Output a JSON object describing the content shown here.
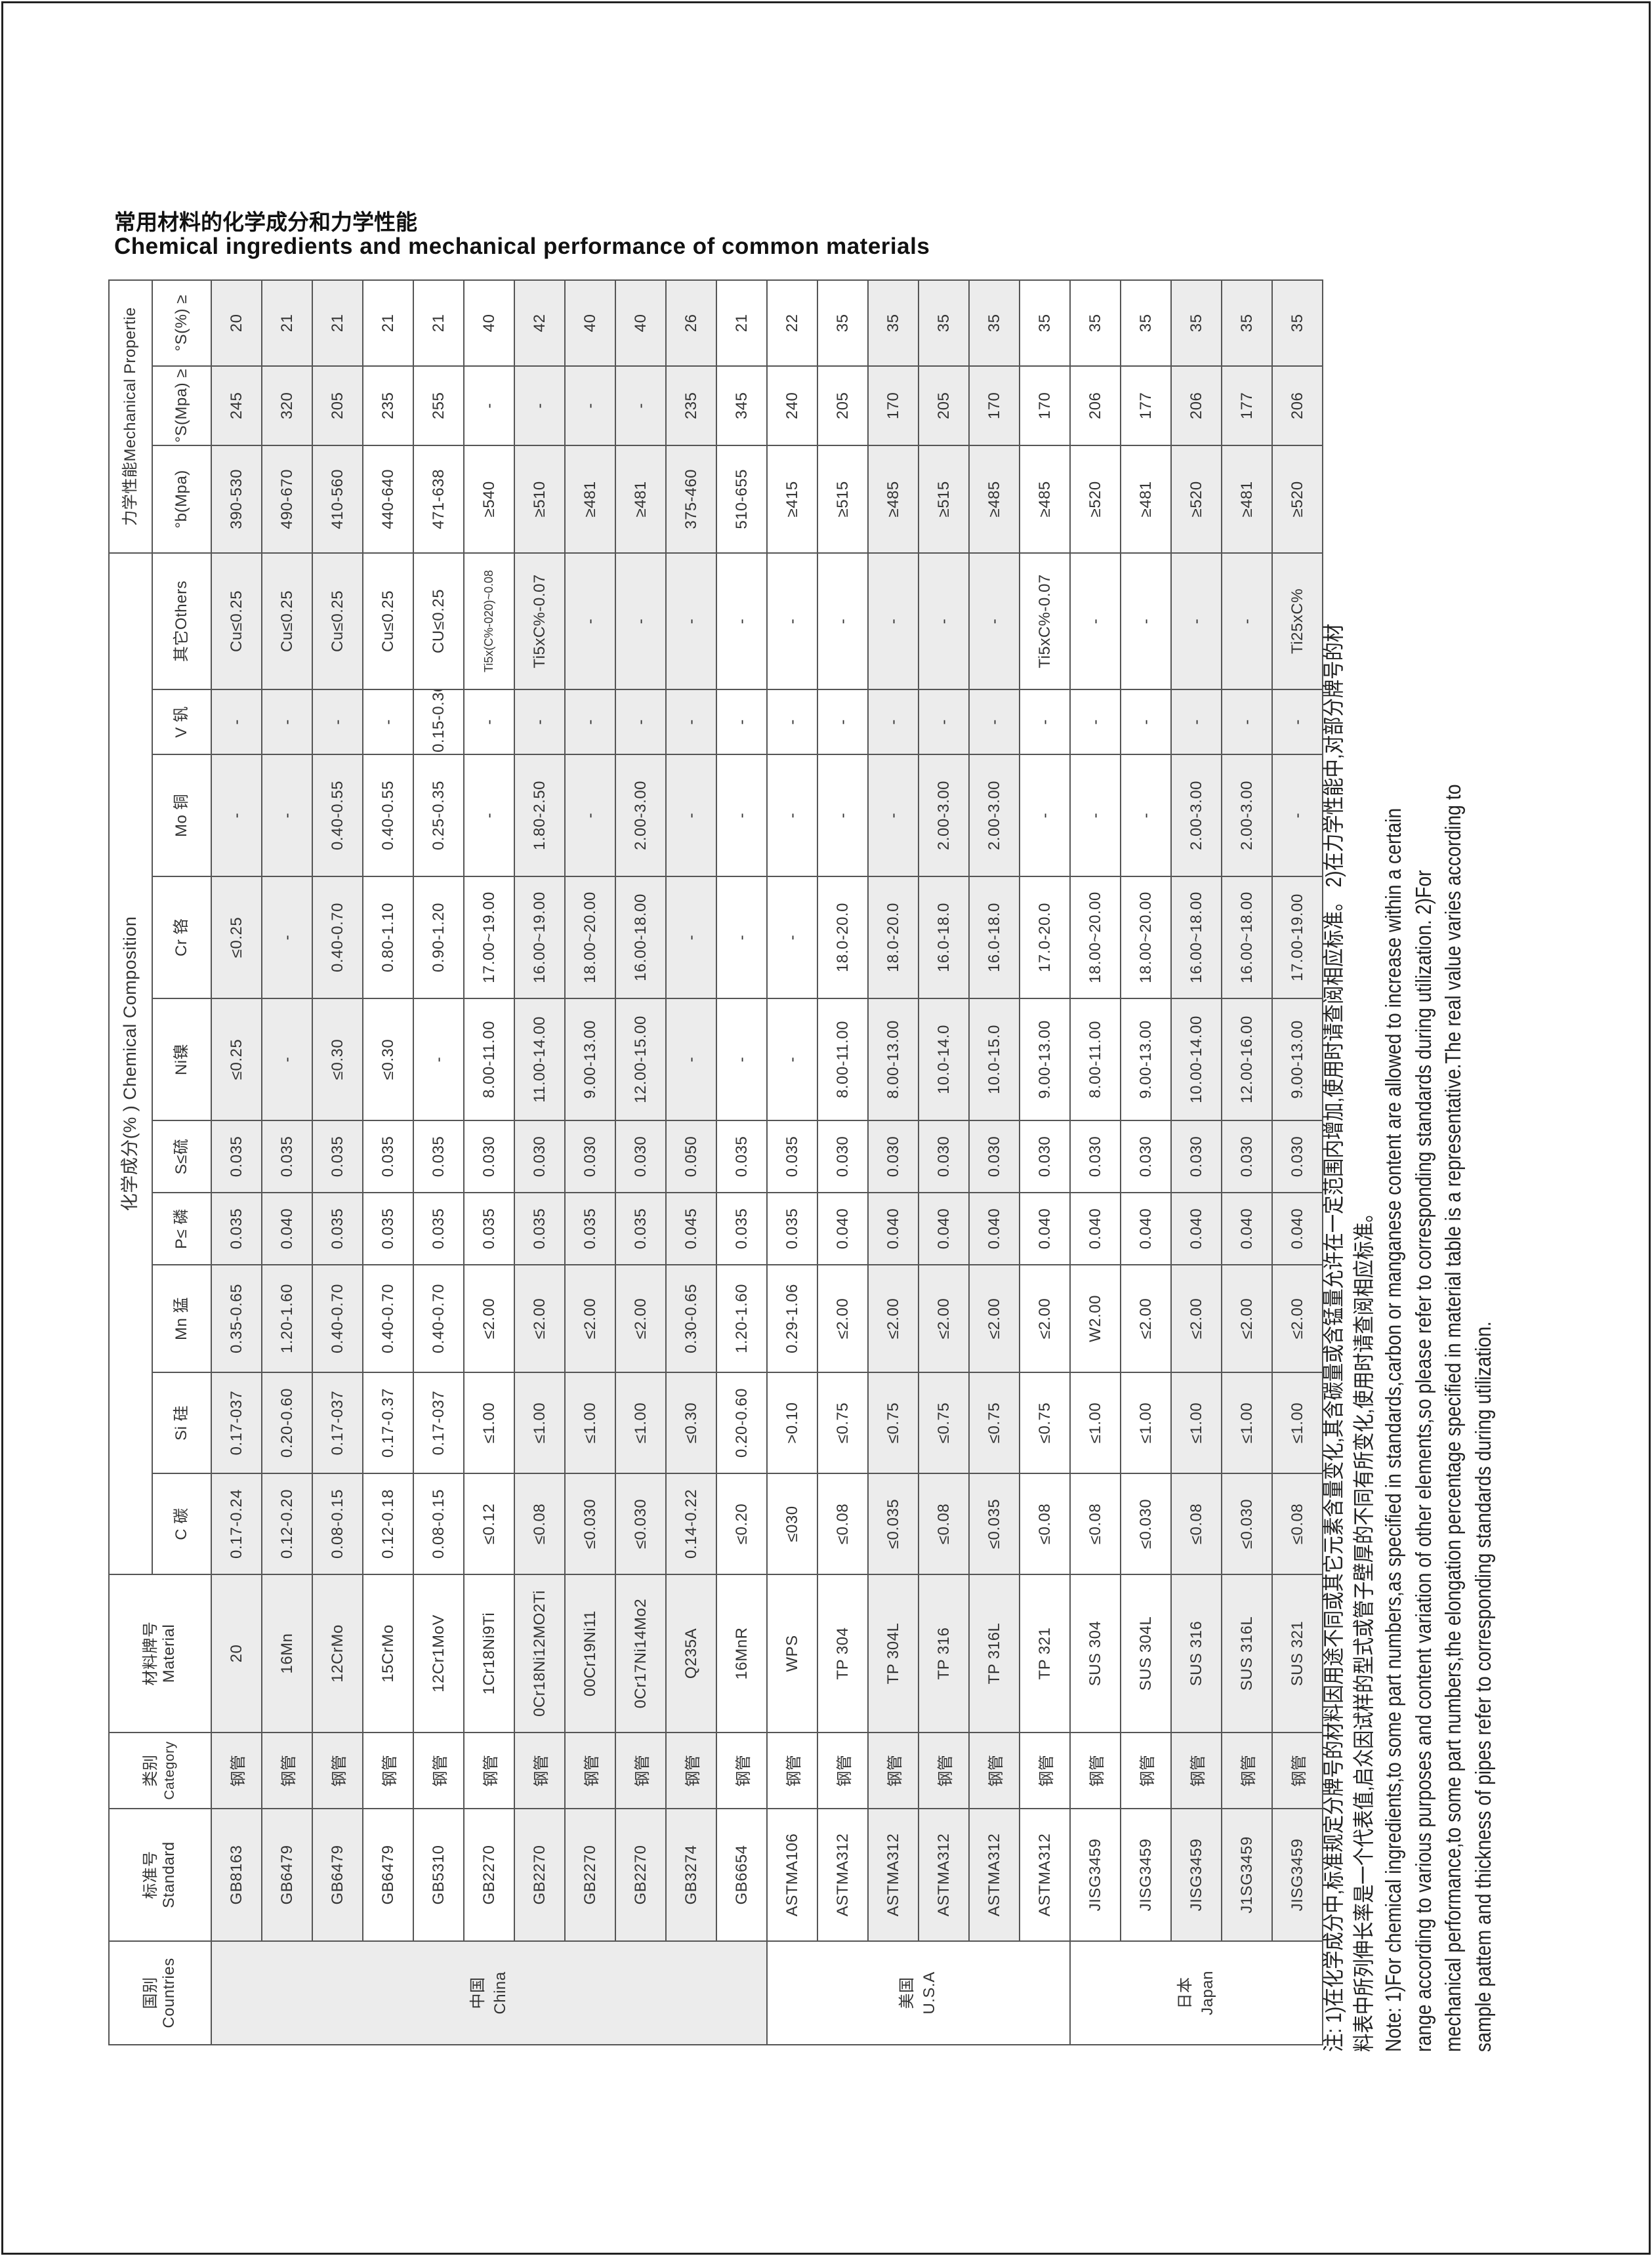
{
  "title": {
    "zh": "常用材料的化学成分和力学性能",
    "en": "Chemical ingredients and mechanical performance of common materials"
  },
  "header": {
    "countries_zh": "国别",
    "countries_en": "Countries",
    "standard_zh": "标准号",
    "standard_en": "Standard",
    "category_zh": "类别",
    "category_en": "Category",
    "material_zh": "材料牌号",
    "material_en": "Material",
    "chem_group": "化学成分(% ) Chemical Composition",
    "mech_group": "力学性能Mechanical Propertie",
    "sub": [
      "C 碳",
      "Si 硅",
      "Mn 猛",
      "P≤ 磷",
      "S≤硫",
      "Ni镍",
      "Cr 铬",
      "Mo 铜",
      "V 钒",
      "其它Others",
      "°b(Mpa)",
      "°S(Mpa) ≥",
      "°S(%) ≥"
    ]
  },
  "countries": [
    {
      "zh": "中国",
      "en": "China",
      "rows": 11
    },
    {
      "zh": "美国",
      "en": "U.S.A",
      "rows": 6
    },
    {
      "zh": "日本",
      "en": "Japan",
      "rows": 5
    }
  ],
  "rows": [
    [
      "GB8163",
      "钢管",
      "20",
      "0.17-0.24",
      "0.17-037",
      "0.35-0.65",
      "0.035",
      "0.035",
      "≤0.25",
      "≤0.25",
      "-",
      "-",
      "Cu≤0.25",
      "390-530",
      "245",
      "20"
    ],
    [
      "GB6479",
      "钢管",
      "16Mn",
      "0.12-0.20",
      "0.20-0.60",
      "1.20-1.60",
      "0.040",
      "0.035",
      "-",
      "-",
      "-",
      "-",
      "Cu≤0.25",
      "490-670",
      "320",
      "21"
    ],
    [
      "GB6479",
      "钢管",
      "12CrMo",
      "0.08-0.15",
      "0.17-037",
      "0.40-0.70",
      "0.035",
      "0.035",
      "≤0.30",
      "0.40-0.70",
      "0.40-0.55",
      "-",
      "Cu≤0.25",
      "410-560",
      "205",
      "21"
    ],
    [
      "GB6479",
      "钢管",
      "15CrMo",
      "0.12-0.18",
      "0.17-0.37",
      "0.40-0.70",
      "0.035",
      "0.035",
      "≤0.30",
      "0.80-1.10",
      "0.40-0.55",
      "-",
      "Cu≤0.25",
      "440-640",
      "235",
      "21"
    ],
    [
      "GB5310",
      "钢管",
      "12Cr1MoV",
      "0.08-0.15",
      "0.17-037",
      "0.40-0.70",
      "0.035",
      "0.035",
      "-",
      "0.90-1.20",
      "0.25-0.35",
      "0.15-0.30",
      "CU≤0.25",
      "471-638",
      "255",
      "21"
    ],
    [
      "GB2270",
      "钢管",
      "1Cr18Ni9Ti",
      "≤0.12",
      "≤1.00",
      "≤2.00",
      "0.035",
      "0.030",
      "8.00-11.00",
      "17.00~19.00",
      "-",
      "-",
      "Ti5x(C%-020)~0.08",
      "≥540",
      "-",
      "40"
    ],
    [
      "GB2270",
      "钢管",
      "0Cr18Ni12MO2Ti",
      "≤0.08",
      "≤1.00",
      "≤2.00",
      "0.035",
      "0.030",
      "11.00-14.00",
      "16.00~19.00",
      "1.80-2.50",
      "-",
      "Ti5xC%-0.07",
      "≥510",
      "-",
      "42"
    ],
    [
      "GB2270",
      "钢管",
      "00Cr19Ni11",
      "≤0.030",
      "≤1.00",
      "≤2.00",
      "0.035",
      "0.030",
      "9.00-13.00",
      "18.00~20.00",
      "-",
      "-",
      "-",
      "≥481",
      "-",
      "40"
    ],
    [
      "GB2270",
      "钢管",
      "0Cr17Ni14Mo2",
      "≤0.030",
      "≤1.00",
      "≤2.00",
      "0.035",
      "0.030",
      "12.00-15.00",
      "16.00-18.00",
      "2.00-3.00",
      "-",
      "-",
      "≥481",
      "-",
      "40"
    ],
    [
      "GB3274",
      "钢管",
      "Q235A",
      "0.14-0.22",
      "≤0.30",
      "0.30-0.65",
      "0.045",
      "0.050",
      "-",
      "-",
      "-",
      "-",
      "-",
      "375-460",
      "235",
      "26"
    ],
    [
      "GB6654",
      "钢管",
      "16MnR",
      "≤0.20",
      "0.20-0.60",
      "1.20-1.60",
      "0.035",
      "0.035",
      "-",
      "-",
      "-",
      "-",
      "-",
      "510-655",
      "345",
      "21"
    ],
    [
      "ASTMA106",
      "钢管",
      "WPS",
      "≤030",
      ">0.10",
      "0.29-1.06",
      "0.035",
      "0.035",
      "-",
      "-",
      "-",
      "-",
      "-",
      "≥415",
      "240",
      "22"
    ],
    [
      "ASTMA312",
      "钢管",
      "TP 304",
      "≤0.08",
      "≤0.75",
      "≤2.00",
      "0.040",
      "0.030",
      "8.00-11.00",
      "18.0-20.0",
      "-",
      "-",
      "-",
      "≥515",
      "205",
      "35"
    ],
    [
      "ASTMA312",
      "钢管",
      "TP 304L",
      "≤0.035",
      "≤0.75",
      "≤2.00",
      "0.040",
      "0.030",
      "8.00-13.00",
      "18.0-20.0",
      "-",
      "-",
      "-",
      "≥485",
      "170",
      "35"
    ],
    [
      "ASTMA312",
      "钢管",
      "TP 316",
      "≤0.08",
      "≤0.75",
      "≤2.00",
      "0.040",
      "0.030",
      "10.0-14.0",
      "16.0-18.0",
      "2.00-3.00",
      "-",
      "-",
      "≥515",
      "205",
      "35"
    ],
    [
      "ASTMA312",
      "钢管",
      "TP 316L",
      "≤0.035",
      "≤0.75",
      "≤2.00",
      "0.040",
      "0.030",
      "10.0-15.0",
      "16.0-18.0",
      "2.00-3.00",
      "-",
      "-",
      "≥485",
      "170",
      "35"
    ],
    [
      "ASTMA312",
      "钢管",
      "TP 321",
      "≤0.08",
      "≤0.75",
      "≤2.00",
      "0.040",
      "0.030",
      "9.00-13.00",
      "17.0-20.0",
      "-",
      "-",
      "Ti5xC%-0.07",
      "≥485",
      "170",
      "35"
    ],
    [
      "JISG3459",
      "钢管",
      "SUS 304",
      "≤0.08",
      "≤1.00",
      "W2.00",
      "0.040",
      "0.030",
      "8.00-11.00",
      "18.00~20.00",
      "-",
      "-",
      "-",
      "≥520",
      "206",
      "35"
    ],
    [
      "JISG3459",
      "钢管",
      "SUS 304L",
      "≤0.030",
      "≤1.00",
      "≤2.00",
      "0.040",
      "0.030",
      "9.00-13.00",
      "18.00~20.00",
      "-",
      "-",
      "-",
      "≥481",
      "177",
      "35"
    ],
    [
      "JISG3459",
      "钢管",
      "SUS 316",
      "≤0.08",
      "≤1.00",
      "≤2.00",
      "0.040",
      "0.030",
      "10.00-14.00",
      "16.00~18.00",
      "2.00-3.00",
      "-",
      "-",
      "≥520",
      "206",
      "35"
    ],
    [
      "J1SG3459",
      "钢管",
      "SUS 316L",
      "≤0.030",
      "≤1.00",
      "≤2.00",
      "0.040",
      "0.030",
      "12.00-16.00",
      "16.00~18.00",
      "2.00-3.00",
      "-",
      "-",
      "≥481",
      "177",
      "35"
    ],
    [
      "JISG3459",
      "钢管",
      "SUS 321",
      "≤0.08",
      "≤1.00",
      "≤2.00",
      "0.040",
      "0.030",
      "9.00-13.00",
      "17.00-19.00",
      "-",
      "-",
      "Ti25xC%",
      "≥520",
      "206",
      "35"
    ]
  ],
  "notes": [
    "注: 1)在化学成分中,标准规定分牌号的材料因用途不同或其它元素含量变化,其含碳量或含锰量允许在一定范围内增加,使用时请查阅相应标准。 2)在力学性能中,对部分牌号的材",
    "料表中所列伸长率是一个代表值,启众因试样的型式或管子壁厚的不同有所变化,使用时请查阅相应标准。",
    "Note: 1)For chemical ingredients,to some part numbers,as specified in standards,carbon or manganese content are allowed to increase within a certain",
    "range according to various purposes and content variation of other elements,so please refer to corresponding standards during utilization. 2)For",
    "mechanical performance,to some part numbers,the elongation percentage specified in material table is a representative.The real value varies according to",
    "sample pattem and thickness of pipes refer to corresponding standards during utilization."
  ],
  "colors": {
    "row_shade": "#ececec",
    "border": "#555555",
    "text": "#333333"
  }
}
